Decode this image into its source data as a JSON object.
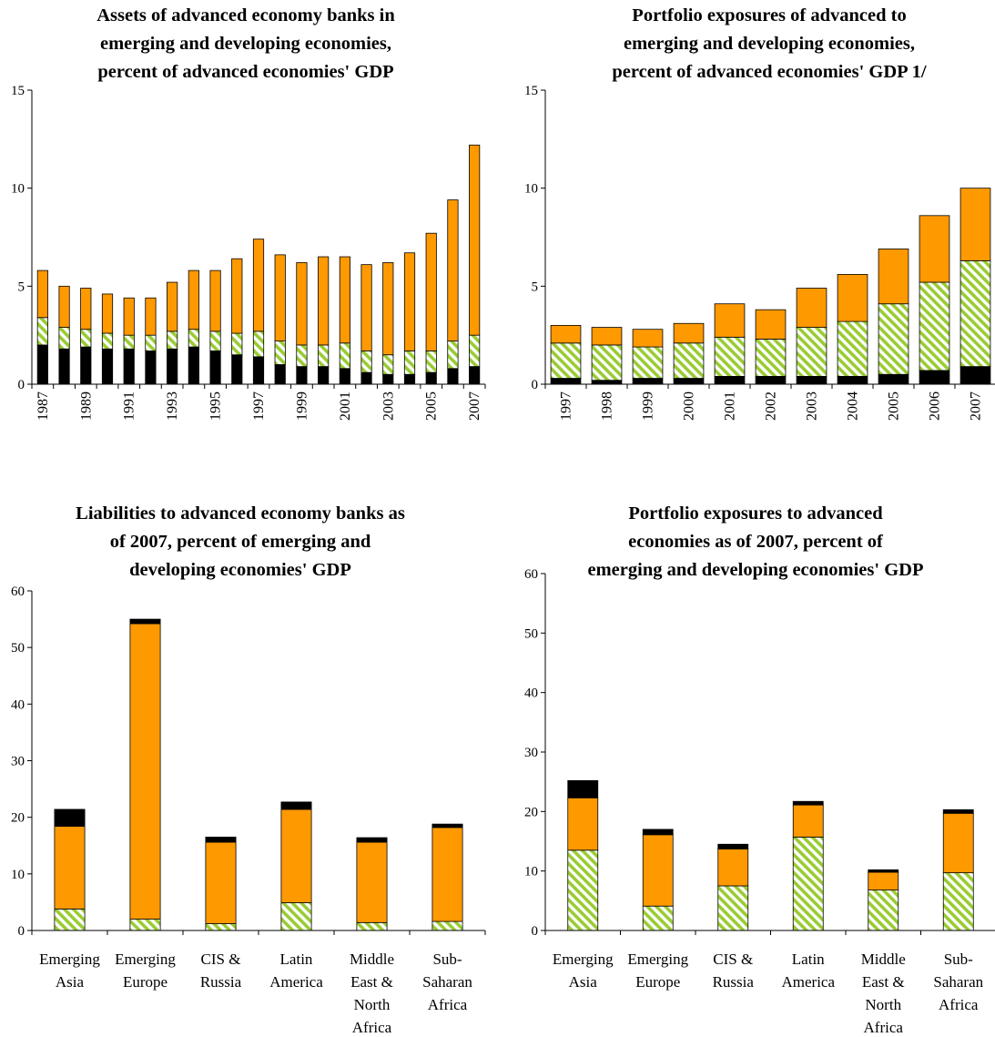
{
  "colors": {
    "black": "#000000",
    "orange": "#FF9900",
    "green_hatch": "#99CC33",
    "axis": "#000000"
  },
  "chart_data": [
    {
      "type": "bar",
      "stacked": true,
      "title_lines": [
        "Assets of advanced economy banks in",
        "emerging and developing economies,",
        "percent of advanced economies' GDP"
      ],
      "categories": [
        "1987",
        "1988",
        "1989",
        "1990",
        "1991",
        "1992",
        "1993",
        "1994",
        "1995",
        "1996",
        "1997",
        "1998",
        "1999",
        "2000",
        "2001",
        "2002",
        "2003",
        "2004",
        "2005",
        "2006",
        "2007"
      ],
      "x_tick_labels": [
        "1987",
        "",
        "1989",
        "",
        "1991",
        "",
        "1993",
        "",
        "1995",
        "",
        "1997",
        "",
        "1999",
        "",
        "2001",
        "",
        "2003",
        "",
        "2005",
        "",
        "2007"
      ],
      "ylim": [
        0,
        15
      ],
      "yticks": [
        0,
        5,
        10,
        15
      ],
      "series": [
        {
          "fill": "black",
          "values": [
            2.0,
            1.8,
            1.9,
            1.8,
            1.8,
            1.7,
            1.8,
            1.9,
            1.7,
            1.5,
            1.4,
            1.0,
            0.9,
            0.9,
            0.8,
            0.6,
            0.5,
            0.5,
            0.6,
            0.8,
            0.9
          ]
        },
        {
          "fill": "green_hatch",
          "values": [
            1.4,
            1.1,
            0.9,
            0.8,
            0.7,
            0.8,
            0.9,
            0.9,
            1.0,
            1.1,
            1.3,
            1.2,
            1.1,
            1.1,
            1.3,
            1.1,
            1.0,
            1.2,
            1.1,
            1.4,
            1.6
          ]
        },
        {
          "fill": "orange",
          "values": [
            2.4,
            2.1,
            2.1,
            2.0,
            1.9,
            1.9,
            2.5,
            3.0,
            3.1,
            3.8,
            4.7,
            4.4,
            4.2,
            4.5,
            4.4,
            4.4,
            4.7,
            5.0,
            6.0,
            7.2,
            9.7
          ]
        }
      ]
    },
    {
      "type": "bar",
      "stacked": true,
      "title_lines": [
        "Portfolio exposures of advanced to",
        "emerging and developing economies,",
        "percent of advanced economies' GDP 1/"
      ],
      "categories": [
        "1997",
        "1998",
        "1999",
        "2000",
        "2001",
        "2002",
        "2003",
        "2004",
        "2005",
        "2006",
        "2007"
      ],
      "x_tick_labels": [
        "1997",
        "1998",
        "1999",
        "2000",
        "2001",
        "2002",
        "2003",
        "2004",
        "2005",
        "2006",
        "2007"
      ],
      "ylim": [
        0,
        15
      ],
      "yticks": [
        0,
        5,
        10,
        15
      ],
      "series": [
        {
          "fill": "black",
          "values": [
            0.3,
            0.2,
            0.3,
            0.3,
            0.4,
            0.4,
            0.4,
            0.4,
            0.5,
            0.7,
            0.9
          ]
        },
        {
          "fill": "green_hatch",
          "values": [
            1.8,
            1.8,
            1.6,
            1.8,
            2.0,
            1.9,
            2.5,
            2.8,
            3.6,
            4.5,
            5.4
          ]
        },
        {
          "fill": "orange",
          "values": [
            0.9,
            0.9,
            0.9,
            1.0,
            1.7,
            1.5,
            2.0,
            2.4,
            2.8,
            3.4,
            3.7
          ]
        }
      ]
    },
    {
      "type": "bar",
      "stacked": true,
      "title_lines": [
        "Liabilities to advanced economy banks as",
        "of 2007, percent of emerging and",
        "developing economies' GDP"
      ],
      "categories": [
        [
          "Emerging",
          "Asia"
        ],
        [
          "Emerging",
          "Europe"
        ],
        [
          "CIS &",
          "Russia"
        ],
        [
          "Latin",
          "America"
        ],
        [
          "Middle",
          "East &",
          "North",
          "Africa"
        ],
        [
          "Sub-",
          "Saharan",
          "Africa"
        ]
      ],
      "ylim": [
        0,
        60
      ],
      "yticks": [
        0,
        10,
        20,
        30,
        40,
        50,
        60
      ],
      "series": [
        {
          "fill": "green_hatch",
          "values": [
            3.8,
            2.0,
            1.2,
            4.9,
            1.4,
            1.6
          ]
        },
        {
          "fill": "orange",
          "values": [
            14.6,
            52.2,
            14.4,
            16.5,
            14.2,
            16.6
          ]
        },
        {
          "fill": "black",
          "values": [
            3.0,
            0.8,
            0.9,
            1.3,
            0.8,
            0.6
          ]
        }
      ]
    },
    {
      "type": "bar",
      "stacked": true,
      "title_lines": [
        "Portfolio exposures to advanced",
        "economies as of 2007, percent of",
        "emerging and developing economies' GDP"
      ],
      "categories": [
        [
          "Emerging",
          "Asia"
        ],
        [
          "Emerging",
          "Europe"
        ],
        [
          "CIS &",
          "Russia"
        ],
        [
          "Latin",
          "America"
        ],
        [
          "Middle",
          "East &",
          "North",
          "Africa"
        ],
        [
          "Sub-",
          "Saharan",
          "Africa"
        ]
      ],
      "ylim": [
        0,
        60
      ],
      "yticks": [
        0,
        10,
        20,
        30,
        40,
        50,
        60
      ],
      "series": [
        {
          "fill": "green_hatch",
          "values": [
            13.5,
            4.1,
            7.5,
            15.7,
            6.8,
            9.7
          ]
        },
        {
          "fill": "orange",
          "values": [
            8.8,
            12.0,
            6.2,
            5.4,
            3.0,
            10.0
          ]
        },
        {
          "fill": "black",
          "values": [
            2.9,
            0.9,
            0.8,
            0.6,
            0.4,
            0.6
          ]
        }
      ]
    }
  ]
}
